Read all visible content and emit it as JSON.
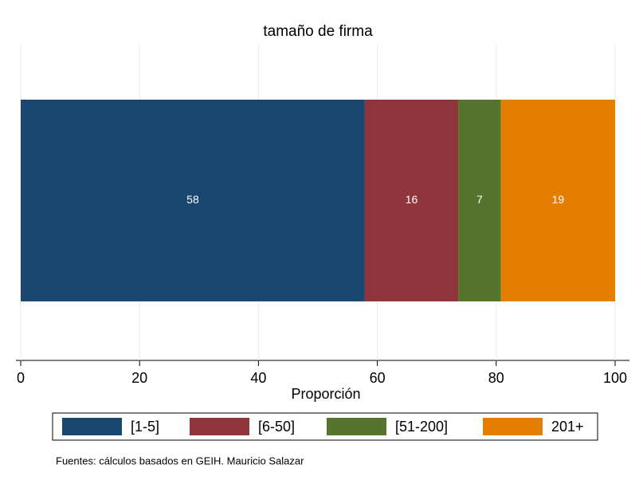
{
  "chart_data": {
    "type": "stacked_bar",
    "orientation": "horizontal",
    "title": "tamaño de firma",
    "xlabel": "Proporción",
    "note": "Fuentes: cálculos basados en GEIH. Mauricio Salazar",
    "series": [
      {
        "name": "[1-5]",
        "color": "#1a476f",
        "values": [
          57.9
        ],
        "value_labels": [
          "58"
        ]
      },
      {
        "name": "[6-50]",
        "color": "#90353b",
        "values": [
          15.7
        ],
        "value_labels": [
          "16"
        ]
      },
      {
        "name": "[51-200]",
        "color": "#55752f",
        "values": [
          7.2
        ],
        "value_labels": [
          "7"
        ]
      },
      {
        "name": "201+",
        "color": "#e37e00",
        "values": [
          19.2
        ],
        "value_labels": [
          "19"
        ]
      }
    ],
    "xlim": [
      0,
      100
    ],
    "xticks": [
      0,
      20,
      40,
      60,
      80,
      100
    ],
    "grid": true,
    "legend": "bottom"
  }
}
